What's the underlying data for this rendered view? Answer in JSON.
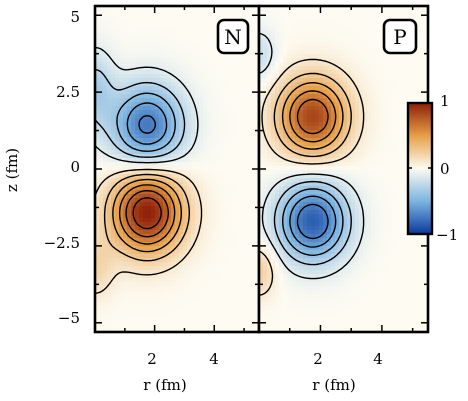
{
  "chart_data": {
    "type": "heatmap",
    "colormap": {
      "negative": "#0a3a9c",
      "zero": "#fdfbf2",
      "positive": "#8e1e08",
      "mid_negative": "#7cb4e0",
      "mid_positive": "#e6a048"
    },
    "colorbar": {
      "range": [
        -1,
        1
      ],
      "ticks": [
        1,
        0,
        -1
      ],
      "tick_labels": [
        "1",
        "0",
        "−1"
      ]
    },
    "yaxis": {
      "label": "z (fm)",
      "range": [
        -5.3,
        5.3
      ],
      "ticks": [
        5,
        2.5,
        0,
        -2.5,
        -5
      ],
      "tick_labels": [
        "5",
        "2.5",
        "0",
        "−2.5",
        "−5"
      ]
    },
    "panels": [
      {
        "tag": "N",
        "xlabel": "r (fm)",
        "xrange": [
          0,
          5.5
        ],
        "xticks": [
          2,
          4
        ],
        "xtick_labels": [
          "2",
          "4"
        ],
        "lobes": [
          {
            "r": 1.75,
            "z": 1.4,
            "amplitude": -0.75,
            "sigma_r": 0.85,
            "sigma_z": 0.95
          },
          {
            "r": 1.75,
            "z": -1.4,
            "amplitude": 1.0,
            "sigma_r": 0.85,
            "sigma_z": 0.95
          },
          {
            "r": 0.0,
            "z": 2.6,
            "amplitude": -0.3,
            "sigma_r": 0.45,
            "sigma_z": 0.9
          },
          {
            "r": 0.0,
            "z": -3.2,
            "amplitude": 0.2,
            "sigma_r": 0.45,
            "sigma_z": 0.7
          }
        ]
      },
      {
        "tag": "P",
        "xlabel": "r (fm)",
        "xrange": [
          0,
          5.5
        ],
        "xticks": [
          2,
          4
        ],
        "xtick_labels": [
          "2",
          "4"
        ],
        "lobes": [
          {
            "r": 1.75,
            "z": 1.7,
            "amplitude": 0.85,
            "sigma_r": 0.8,
            "sigma_z": 0.9
          },
          {
            "r": 1.75,
            "z": -1.7,
            "amplitude": -0.85,
            "sigma_r": 0.8,
            "sigma_z": 0.9
          },
          {
            "r": 0.0,
            "z": 3.7,
            "amplitude": -0.2,
            "sigma_r": 0.4,
            "sigma_z": 0.6
          },
          {
            "r": 0.0,
            "z": -3.3,
            "amplitude": 0.25,
            "sigma_r": 0.4,
            "sigma_z": 0.6
          }
        ]
      }
    ],
    "contour_levels": [
      -0.85,
      -0.7,
      -0.55,
      -0.4,
      -0.25,
      -0.1,
      0.1,
      0.25,
      0.4,
      0.55,
      0.7,
      0.85
    ],
    "contour_style": {
      "negative": "dashed",
      "positive": "solid"
    }
  }
}
